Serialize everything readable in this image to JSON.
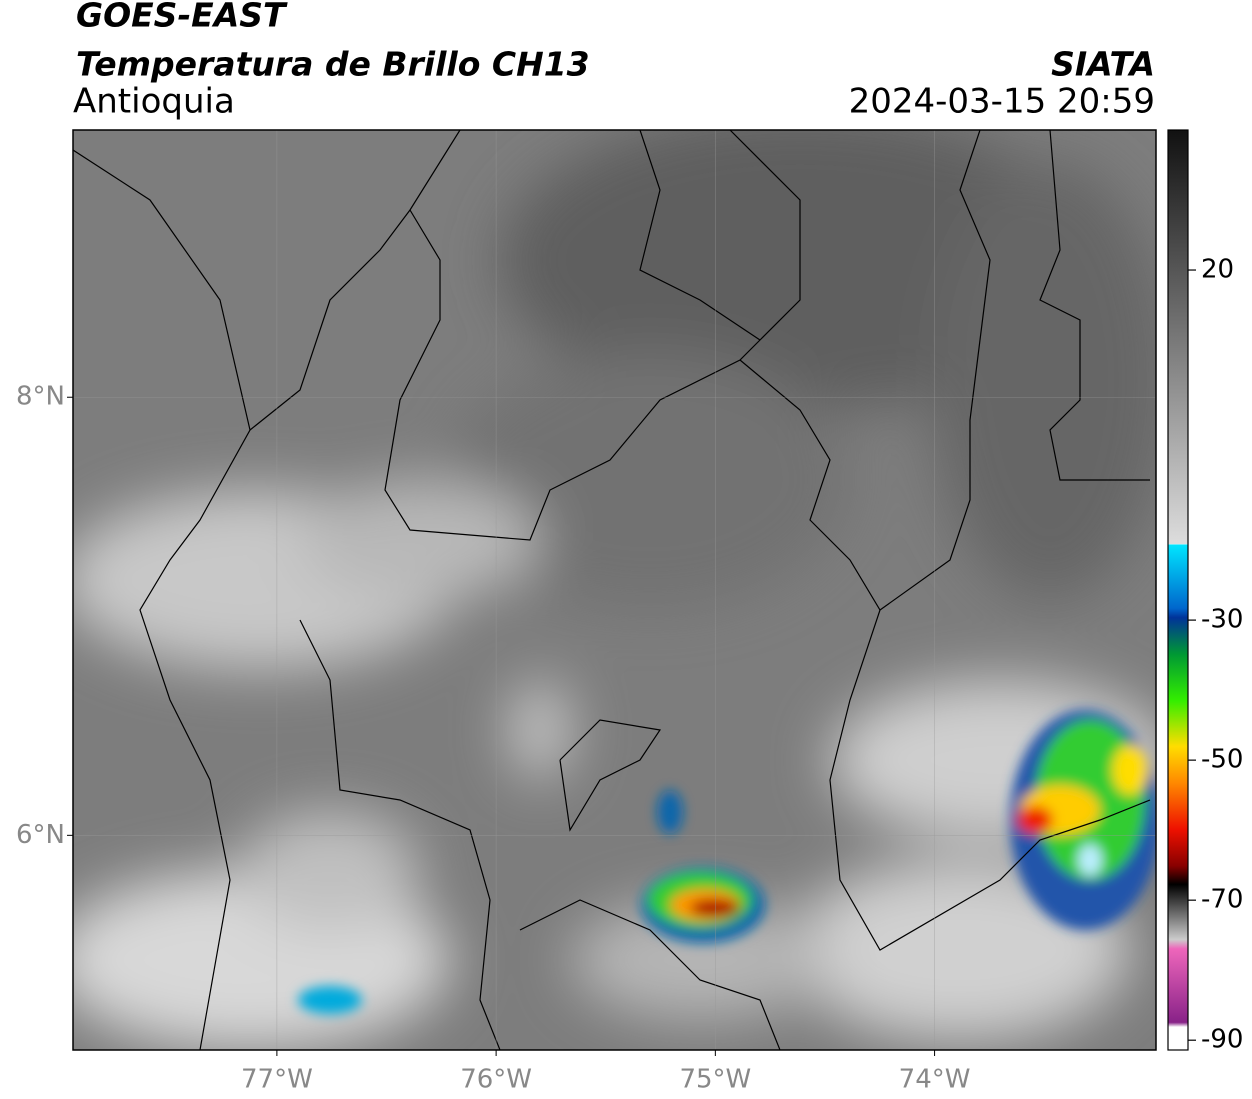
{
  "header": {
    "satellite": "GOES-EAST",
    "product": "Temperatura de Brillo CH13",
    "region": "Antioquia",
    "source": "SIATA",
    "datetime": "2024-03-15 20:59"
  },
  "map": {
    "xlim": [
      -77.93,
      -72.99
    ],
    "ylim": [
      5.02,
      9.22
    ],
    "xticks": [
      {
        "value": -77,
        "label": "77°W"
      },
      {
        "value": -76,
        "label": "76°W"
      },
      {
        "value": -75,
        "label": "75°W"
      },
      {
        "value": -74,
        "label": "74°W"
      }
    ],
    "yticks": [
      {
        "value": 8,
        "label": "8°N"
      },
      {
        "value": 6,
        "label": "6°N"
      }
    ],
    "grid": true
  },
  "colorbar": {
    "lim": [
      -91.4,
      40
    ],
    "ticks": [
      20,
      -30,
      -50,
      -70,
      -90
    ]
  }
}
